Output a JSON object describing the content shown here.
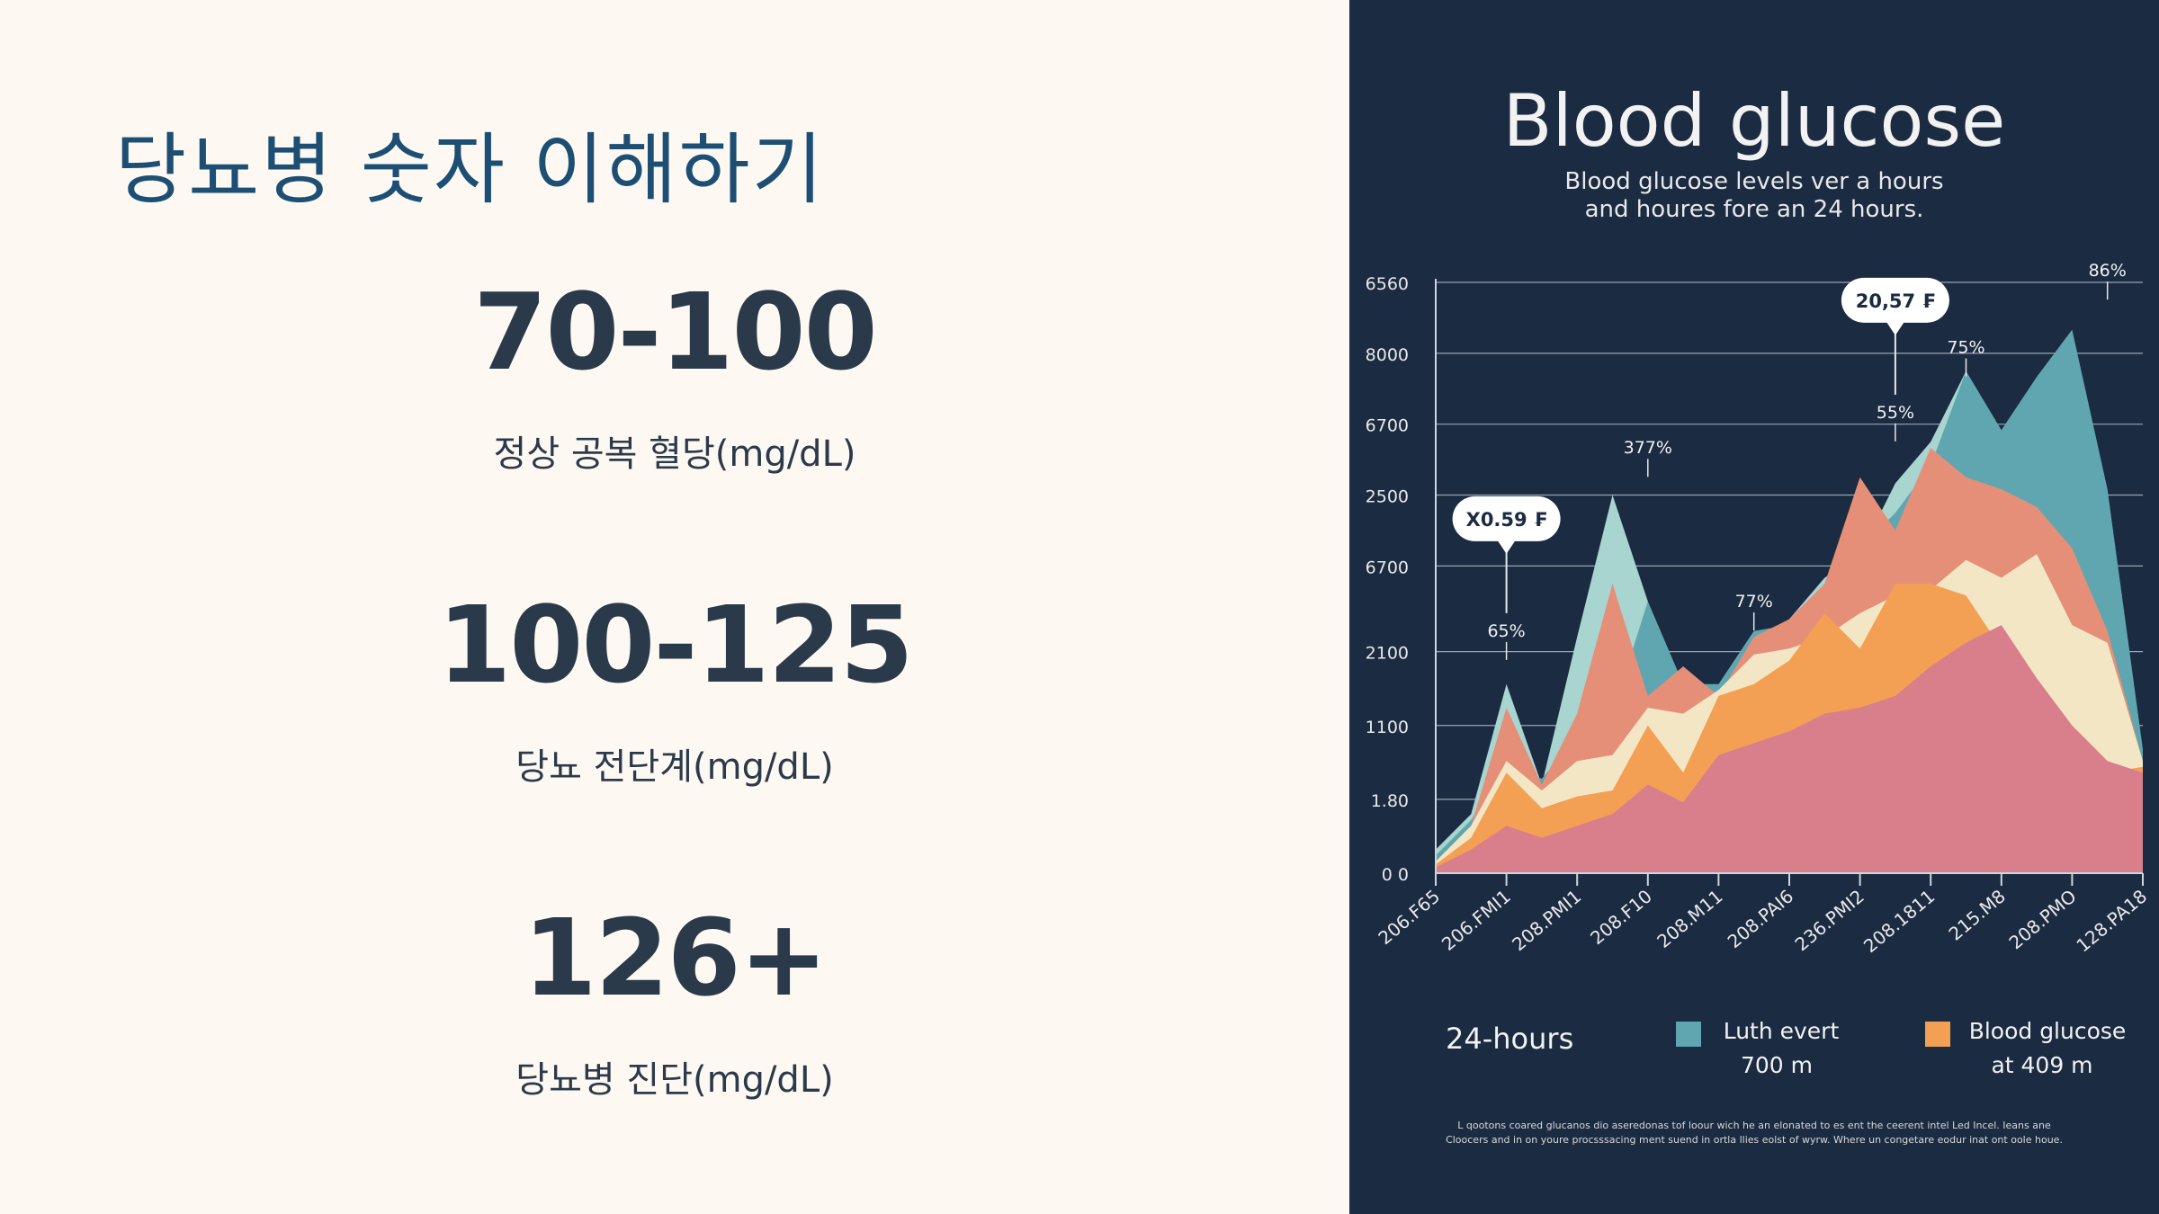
{
  "title": "당뇨병 숫자 이해하기",
  "stats": [
    {
      "value": "70-100",
      "caption": "정상 공복 혈당(mg/dL)"
    },
    {
      "value": "100-125",
      "caption": "당뇨 전단계(mg/dL)"
    },
    {
      "value": "126+",
      "caption": "당뇨병 진단(mg/dL)"
    }
  ],
  "chart_data": {
    "type": "area",
    "title": "Blood glucose",
    "subtitle_lines": [
      "Blood glucose levels ver a hours",
      "and houres fore an 24 hours."
    ],
    "y_tick_labels": [
      "0 0",
      "1.80",
      "1100",
      "2100",
      "6700",
      "2500",
      "6700",
      "8000",
      "6560"
    ],
    "x_tick_labels": [
      "206.F65",
      "206.FMI1",
      "208.PMI1",
      "208.F10",
      "208.M11",
      "208.PAI6",
      "236.PMI2",
      "208.1811",
      "215.M8",
      "208.PMO",
      "128.PA18"
    ],
    "x": [
      0,
      0.5,
      1,
      1.5,
      2,
      2.5,
      3,
      3.5,
      4,
      4.5,
      5,
      5.5,
      6,
      6.5,
      7,
      7.5,
      8,
      8.5,
      9,
      9.5,
      10
    ],
    "series": [
      {
        "color": "#a8d5cf",
        "values": [
          0.4,
          1.0,
          3.2,
          1.5,
          4.0,
          6.4,
          4.6,
          1.8,
          2.5,
          3.5,
          4.3,
          5.0,
          5.4,
          6.6,
          7.3,
          8.5,
          7.1,
          7.9,
          9.0,
          6.0,
          1.8
        ]
      },
      {
        "color": "#5fa6b0",
        "values": [
          0.3,
          0.9,
          1.8,
          1.6,
          2.3,
          2.7,
          4.6,
          3.2,
          3.2,
          4.1,
          4.2,
          4.5,
          5.5,
          6.1,
          6.9,
          8.5,
          7.5,
          8.4,
          9.2,
          6.5,
          2.1
        ]
      },
      {
        "color": "#e58f78",
        "values": [
          0.2,
          0.8,
          2.8,
          1.5,
          2.7,
          4.9,
          3.0,
          3.5,
          3.0,
          4.0,
          4.3,
          4.9,
          6.7,
          5.8,
          7.2,
          6.7,
          6.5,
          6.2,
          5.5,
          4.1,
          1.9
        ]
      },
      {
        "color": "#f3e6c4",
        "values": [
          0.2,
          0.8,
          1.9,
          1.4,
          1.9,
          2.0,
          2.8,
          2.7,
          3.1,
          3.7,
          3.8,
          4.0,
          4.4,
          4.7,
          4.8,
          5.3,
          5.0,
          5.4,
          4.2,
          3.9,
          1.9
        ]
      },
      {
        "color": "#f3a055",
        "values": [
          0.15,
          0.6,
          1.7,
          1.1,
          1.3,
          1.4,
          2.5,
          1.7,
          3.0,
          3.2,
          3.6,
          4.4,
          3.8,
          4.9,
          4.9,
          4.7,
          3.8,
          2.9,
          2.2,
          1.7,
          1.8
        ]
      },
      {
        "color": "#d87f8b",
        "values": [
          0.1,
          0.4,
          0.8,
          0.6,
          0.8,
          1.0,
          1.5,
          1.2,
          2.0,
          2.2,
          2.4,
          2.7,
          2.8,
          3.0,
          3.5,
          3.9,
          4.2,
          3.3,
          2.5,
          1.9,
          1.7
        ]
      }
    ],
    "annotations": [
      {
        "text": "65%",
        "x": 1,
        "y": 3.7
      },
      {
        "text": "377%",
        "x": 3,
        "y": 6.8
      },
      {
        "text": "77%",
        "x": 4.5,
        "y": 4.2
      },
      {
        "text": "55%",
        "x": 6.5,
        "y": 7.4
      },
      {
        "text": "75%",
        "x": 7.5,
        "y": 8.5
      },
      {
        "text": "86%",
        "x": 9.5,
        "y": 9.8
      }
    ],
    "callouts": [
      {
        "text": "X0.59 ₣",
        "x": 1,
        "y": 3.7
      },
      {
        "text": "20,57 ₣",
        "x": 6.5,
        "y": 7.4
      }
    ],
    "legend_title": "24-hours",
    "legend": [
      {
        "lines": [
          "Luth evert",
          "700 m"
        ],
        "color": "#5fa6b0"
      },
      {
        "lines": [
          "Blood glucose",
          "at 409 m"
        ],
        "color": "#f3a055"
      }
    ],
    "footnote_lines": [
      "L qootons coared glucanos dio aseredonas tof loour wich he an elonated to es ent the ceerent intel Led Incel. Ieans ane",
      "Cloocers and in on youre procsssacing ment suend in ortla llies eolst of wyrw. Where un congetare eodur inat ont oole houe."
    ],
    "ylim": [
      0,
      10
    ],
    "xlim": [
      0,
      10
    ],
    "grid": true
  }
}
